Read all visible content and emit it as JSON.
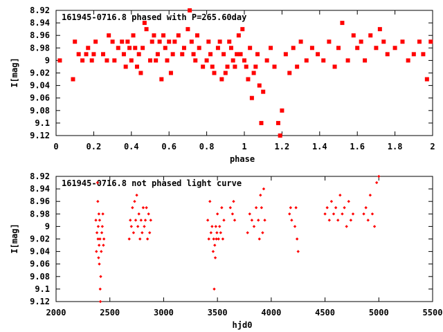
{
  "chart_data": [
    {
      "type": "scatter",
      "title": "161945-0716.8 phased with P=265.60day",
      "xlabel": "phase",
      "ylabel": "I[mag]",
      "xlim": [
        0,
        2
      ],
      "ylim": [
        9.12,
        8.92
      ],
      "y_inverted": true,
      "xticks": [
        "0",
        "0.2",
        "0.4",
        "0.6",
        "0.8",
        "1",
        "1.2",
        "1.4",
        "1.6",
        "1.8",
        "2"
      ],
      "yticks": [
        "8.92",
        "8.94",
        "8.96",
        "8.98",
        "9",
        "9.02",
        "9.04",
        "9.06",
        "9.08",
        "9.1",
        "9.12"
      ],
      "marker": "filled-square",
      "color": "#ff0000",
      "series": [
        {
          "x": [
            0.02,
            0.09,
            0.1,
            0.12,
            0.14,
            0.16,
            0.17,
            0.19,
            0.2,
            0.21,
            0.25,
            0.27,
            0.28,
            0.3,
            0.31,
            0.33,
            0.35,
            0.36,
            0.37,
            0.38,
            0.39,
            0.4,
            0.41,
            0.42,
            0.43,
            0.44,
            0.45,
            0.46,
            0.47,
            0.48,
            0.5,
            0.51,
            0.52,
            0.53,
            0.54,
            0.55,
            0.56,
            0.57,
            0.58,
            0.59,
            0.6,
            0.61,
            0.62,
            0.63,
            0.65,
            0.67,
            0.68,
            0.7,
            0.71,
            0.72,
            0.73,
            0.74,
            0.75,
            0.76,
            0.78,
            0.8,
            0.81,
            0.82,
            0.83,
            0.84,
            0.86,
            0.87,
            0.88,
            0.89,
            0.9,
            0.91,
            0.92,
            0.93,
            0.94,
            0.95,
            0.96,
            0.97,
            0.98,
            0.99,
            1.0,
            1.01,
            1.02,
            1.03,
            1.04,
            1.05,
            1.06,
            1.07,
            1.08,
            1.09,
            1.1,
            1.12,
            1.14,
            1.16,
            1.18,
            1.19,
            1.2,
            1.22,
            1.24,
            1.26,
            1.28,
            1.3,
            1.33,
            1.36,
            1.39,
            1.42,
            1.45,
            1.48,
            1.5,
            1.52,
            1.55,
            1.58,
            1.6,
            1.62,
            1.64,
            1.67,
            1.7,
            1.72,
            1.74,
            1.76,
            1.8,
            1.84,
            1.87,
            1.9,
            1.93,
            1.95,
            1.97,
            1.99
          ],
          "y": [
            9.0,
            9.03,
            8.97,
            8.99,
            9.0,
            8.99,
            8.98,
            9.0,
            8.99,
            8.97,
            8.99,
            9.0,
            8.96,
            8.97,
            9.0,
            8.98,
            8.97,
            8.99,
            9.01,
            8.97,
            8.98,
            9.0,
            8.96,
            8.98,
            9.01,
            8.99,
            9.02,
            8.98,
            8.94,
            8.95,
            9.0,
            8.97,
            8.96,
            9.0,
            8.99,
            8.97,
            9.03,
            8.96,
            8.98,
            9.0,
            8.97,
            9.02,
            8.99,
            8.97,
            8.96,
            8.99,
            8.98,
            8.95,
            8.92,
            8.97,
            8.99,
            9.0,
            8.96,
            8.98,
            9.01,
            9.0,
            8.97,
            8.99,
            9.01,
            9.02,
            8.98,
            8.97,
            9.03,
            8.99,
            9.02,
            9.01,
            8.97,
            8.98,
            9.0,
            9.01,
            8.99,
            8.96,
            8.99,
            8.95,
            9.0,
            9.01,
            9.03,
            8.98,
            9.06,
            9.02,
            9.01,
            8.99,
            9.04,
            9.1,
            9.05,
            9.0,
            8.98,
            9.01,
            9.1,
            9.12,
            9.08,
            8.99,
            9.02,
            8.98,
            9.01,
            8.97,
            9.0,
            8.98,
            8.99,
            9.0,
            8.97,
            9.01,
            8.98,
            8.94,
            9.0,
            8.96,
            8.98,
            8.97,
            9.0,
            8.96,
            8.98,
            8.95,
            8.97,
            8.99,
            8.98,
            8.97,
            9.0,
            8.99,
            8.97,
            8.99,
            9.03,
            8.97
          ]
        }
      ]
    },
    {
      "type": "scatter",
      "title": "161945-0716.8 not phased light curve",
      "xlabel": "hjd0",
      "ylabel": "I[mag]",
      "xlim": [
        2000,
        5500
      ],
      "ylim": [
        9.12,
        8.92
      ],
      "y_inverted": true,
      "xticks": [
        "2000",
        "2500",
        "3000",
        "3500",
        "4000",
        "4500",
        "5000",
        "5500"
      ],
      "yticks": [
        "8.92",
        "8.94",
        "8.96",
        "8.98",
        "9",
        "9.02",
        "9.04",
        "9.06",
        "9.08",
        "9.1",
        "9.12"
      ],
      "marker": "small-diamond",
      "color": "#ff0000",
      "series": [
        {
          "x": [
            2370,
            2375,
            2380,
            2385,
            2388,
            2390,
            2392,
            2395,
            2398,
            2400,
            2402,
            2405,
            2408,
            2410,
            2412,
            2415,
            2420,
            2425,
            2430,
            2435,
            2440,
            2445,
            2680,
            2690,
            2700,
            2710,
            2720,
            2730,
            2740,
            2750,
            2760,
            2770,
            2780,
            2790,
            2800,
            2810,
            2820,
            2830,
            2840,
            2850,
            2860,
            2870,
            2880,
            3410,
            3420,
            3430,
            3440,
            3450,
            3460,
            3465,
            3470,
            3475,
            3480,
            3485,
            3490,
            3495,
            3500,
            3510,
            3520,
            3530,
            3540,
            3550,
            3560,
            3620,
            3640,
            3650,
            3660,
            3780,
            3800,
            3820,
            3840,
            3860,
            3880,
            3890,
            3900,
            3910,
            3920,
            3930,
            3940,
            4170,
            4180,
            4190,
            4220,
            4230,
            4240,
            4250,
            4500,
            4520,
            4540,
            4560,
            4580,
            4600,
            4620,
            4640,
            4660,
            4680,
            4700,
            4720,
            4740,
            4760,
            4860,
            4880,
            4900,
            4920,
            4940,
            4960,
            4980,
            5000
          ],
          "y": [
            8.99,
            9.04,
            9.01,
            8.93,
            8.96,
            9.02,
            9.0,
            9.05,
            8.98,
            9.03,
            9.06,
            8.99,
            9.02,
            9.1,
            9.12,
            9.08,
            9.04,
            9.01,
            9.0,
            8.98,
            9.03,
            9.02,
            9.02,
            8.99,
            9.0,
            8.97,
            9.01,
            8.96,
            8.99,
            8.95,
            9.0,
            8.98,
            9.02,
            8.99,
            9.01,
            8.97,
            9.0,
            8.99,
            8.97,
            9.02,
            8.98,
            9.01,
            8.99,
            8.99,
            9.02,
            8.96,
            9.01,
            9.0,
            9.04,
            9.02,
            9.1,
            9.03,
            9.05,
            9.0,
            9.02,
            9.01,
            8.98,
            9.02,
            9.0,
            9.01,
            8.97,
            9.02,
            8.99,
            8.97,
            8.98,
            8.96,
            8.99,
            9.01,
            8.98,
            8.99,
            9.0,
            8.97,
            8.99,
            9.02,
            8.95,
            8.97,
            9.01,
            8.94,
            8.99,
            8.98,
            8.97,
            8.99,
            9.0,
            8.97,
            9.02,
            9.04,
            8.98,
            8.97,
            8.99,
            8.96,
            8.98,
            8.97,
            8.99,
            8.95,
            8.98,
            8.97,
            9.0,
            8.96,
            8.99,
            8.98,
            8.98,
            8.97,
            8.99,
            8.95,
            8.98,
            9.0,
            8.93,
            8.92
          ]
        }
      ]
    }
  ]
}
